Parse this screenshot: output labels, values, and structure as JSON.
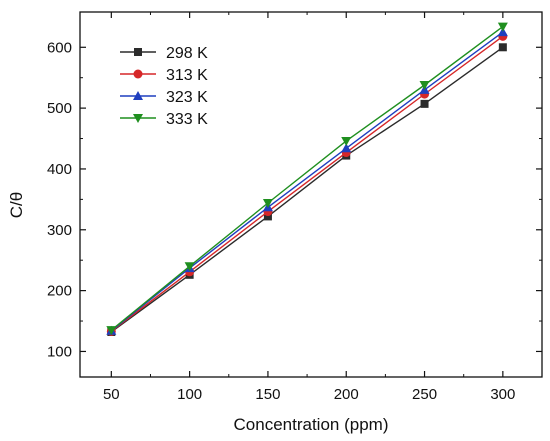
{
  "chart_data": {
    "type": "line",
    "xlabel": "Concentration (ppm)",
    "ylabel": "C/θ",
    "x": [
      50,
      100,
      150,
      200,
      250,
      300
    ],
    "xlim": [
      30,
      325
    ],
    "ylim": [
      58,
      658
    ],
    "xticks": [
      50,
      100,
      150,
      200,
      250,
      300
    ],
    "yticks": [
      100,
      200,
      300,
      400,
      500,
      600
    ],
    "grid": false,
    "legend_position": "top-left",
    "series": [
      {
        "name": "298 K",
        "color": "#2b2b2b",
        "marker": "square",
        "values": [
          132,
          226,
          322,
          422,
          507,
          600
        ]
      },
      {
        "name": "313 K",
        "color": "#d62728",
        "marker": "circle",
        "values": [
          133,
          231,
          330,
          427,
          523,
          618
        ]
      },
      {
        "name": "323 K",
        "color": "#1f3fbf",
        "marker": "triangle-up",
        "values": [
          134,
          237,
          337,
          434,
          530,
          625
        ]
      },
      {
        "name": "333 K",
        "color": "#1f8f1f",
        "marker": "triangle-down",
        "values": [
          135,
          240,
          344,
          446,
          538,
          634
        ]
      }
    ]
  }
}
